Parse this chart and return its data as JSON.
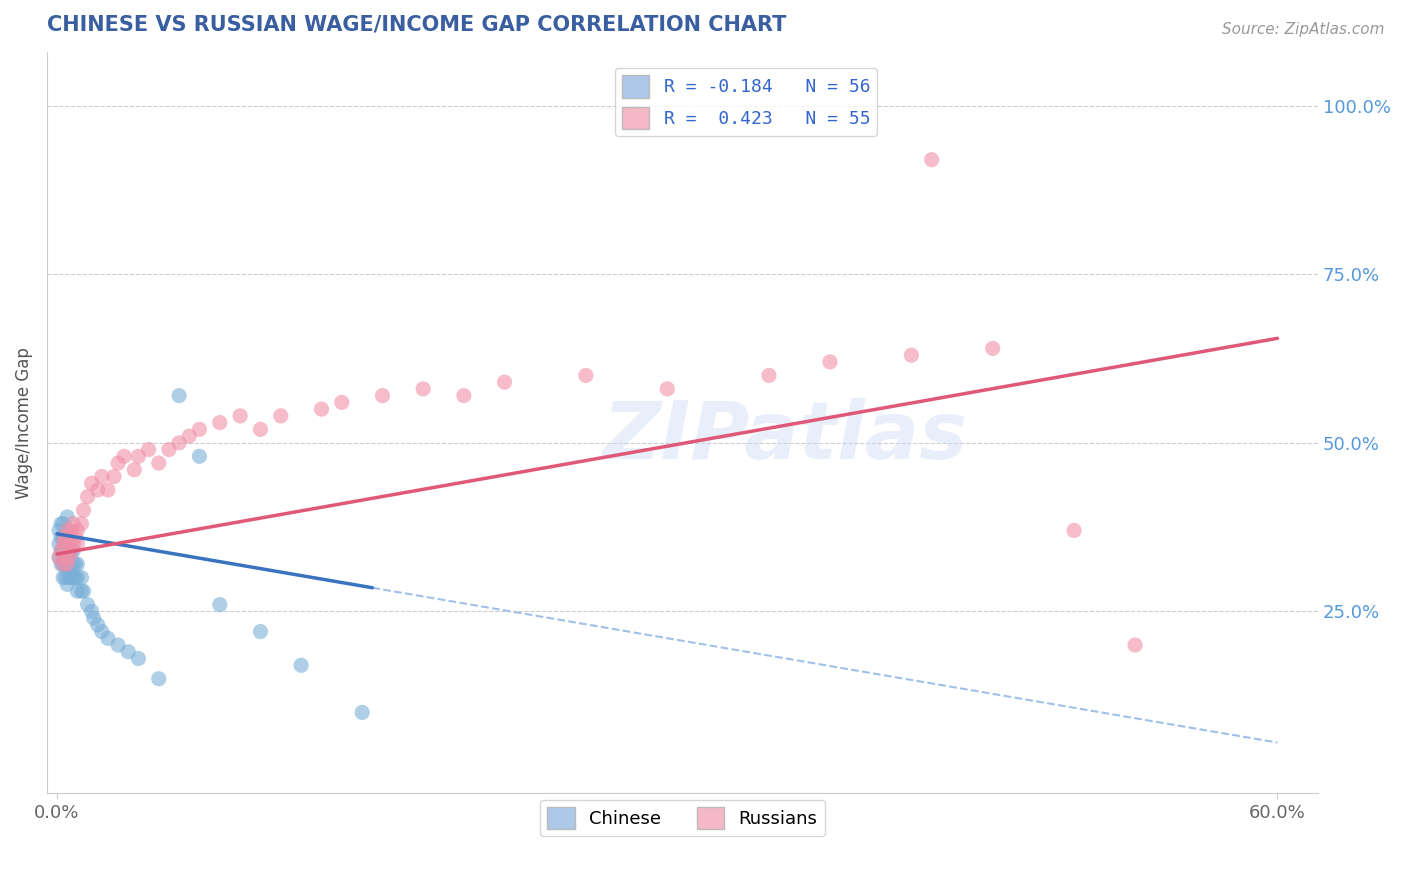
{
  "title": "CHINESE VS RUSSIAN WAGE/INCOME GAP CORRELATION CHART",
  "source": "Source: ZipAtlas.com",
  "ylabel": "Wage/Income Gap",
  "xlim": [
    0.0,
    0.6
  ],
  "ylim": [
    0.0,
    1.05
  ],
  "ytick_right_labels": [
    "25.0%",
    "50.0%",
    "75.0%",
    "100.0%"
  ],
  "ytick_right_values": [
    0.25,
    0.5,
    0.75,
    1.0
  ],
  "legend_items": [
    {
      "label": "R = -0.184   N = 56",
      "color": "#adc8e8"
    },
    {
      "label": "R =  0.423   N = 55",
      "color": "#f5b8c8"
    }
  ],
  "bottom_legend": [
    "Chinese",
    "Russians"
  ],
  "bottom_legend_colors": [
    "#adc8e8",
    "#f5b8c8"
  ],
  "chinese_color": "#7ab0d8",
  "russian_color": "#f090a8",
  "trend_chinese_color": "#3a72c0",
  "trend_russian_color": "#e05878",
  "trend_chinese_dash_color": "#a0c0e8",
  "watermark_text": "ZIPatlas",
  "title_color": "#3a5fa0",
  "source_color": "#999999",
  "grid_color": "#cccccc",
  "right_tick_color": "#5599dd",
  "chin_x": [
    0.001,
    0.001,
    0.001,
    0.002,
    0.002,
    0.002,
    0.002,
    0.003,
    0.003,
    0.003,
    0.003,
    0.003,
    0.004,
    0.004,
    0.004,
    0.004,
    0.005,
    0.005,
    0.005,
    0.005,
    0.005,
    0.005,
    0.006,
    0.006,
    0.006,
    0.006,
    0.007,
    0.007,
    0.007,
    0.008,
    0.008,
    0.008,
    0.009,
    0.009,
    0.01,
    0.01,
    0.01,
    0.012,
    0.012,
    0.013,
    0.015,
    0.017,
    0.018,
    0.02,
    0.022,
    0.025,
    0.03,
    0.035,
    0.04,
    0.05,
    0.06,
    0.07,
    0.08,
    0.1,
    0.12,
    0.15
  ],
  "chin_y": [
    0.33,
    0.35,
    0.37,
    0.32,
    0.34,
    0.36,
    0.38,
    0.3,
    0.32,
    0.34,
    0.36,
    0.38,
    0.3,
    0.32,
    0.34,
    0.36,
    0.29,
    0.31,
    0.33,
    0.35,
    0.37,
    0.39,
    0.3,
    0.32,
    0.34,
    0.36,
    0.3,
    0.32,
    0.34,
    0.3,
    0.32,
    0.34,
    0.3,
    0.32,
    0.28,
    0.3,
    0.32,
    0.28,
    0.3,
    0.28,
    0.26,
    0.25,
    0.24,
    0.23,
    0.22,
    0.21,
    0.2,
    0.19,
    0.18,
    0.15,
    0.57,
    0.48,
    0.26,
    0.22,
    0.17,
    0.1
  ],
  "rus_x": [
    0.001,
    0.002,
    0.003,
    0.003,
    0.004,
    0.004,
    0.005,
    0.005,
    0.005,
    0.006,
    0.006,
    0.007,
    0.007,
    0.008,
    0.008,
    0.009,
    0.01,
    0.01,
    0.012,
    0.013,
    0.015,
    0.017,
    0.02,
    0.022,
    0.025,
    0.028,
    0.03,
    0.033,
    0.038,
    0.04,
    0.045,
    0.05,
    0.055,
    0.06,
    0.065,
    0.07,
    0.08,
    0.09,
    0.1,
    0.11,
    0.13,
    0.14,
    0.16,
    0.18,
    0.2,
    0.22,
    0.26,
    0.3,
    0.35,
    0.38,
    0.42,
    0.46,
    0.5,
    0.53,
    0.43
  ],
  "rus_y": [
    0.33,
    0.34,
    0.32,
    0.35,
    0.33,
    0.36,
    0.32,
    0.35,
    0.37,
    0.33,
    0.36,
    0.34,
    0.37,
    0.35,
    0.38,
    0.36,
    0.35,
    0.37,
    0.38,
    0.4,
    0.42,
    0.44,
    0.43,
    0.45,
    0.43,
    0.45,
    0.47,
    0.48,
    0.46,
    0.48,
    0.49,
    0.47,
    0.49,
    0.5,
    0.51,
    0.52,
    0.53,
    0.54,
    0.52,
    0.54,
    0.55,
    0.56,
    0.57,
    0.58,
    0.57,
    0.59,
    0.6,
    0.58,
    0.6,
    0.62,
    0.63,
    0.64,
    0.37,
    0.2,
    0.92
  ],
  "trend_chin_x0": 0.0,
  "trend_chin_x1": 0.155,
  "trend_chin_xd0": 0.155,
  "trend_chin_xd1": 0.6,
  "trend_chin_y0": 0.365,
  "trend_chin_y1": 0.285,
  "trend_rus_x0": 0.0,
  "trend_rus_x1": 0.6,
  "trend_rus_y0": 0.335,
  "trend_rus_y1": 0.655
}
